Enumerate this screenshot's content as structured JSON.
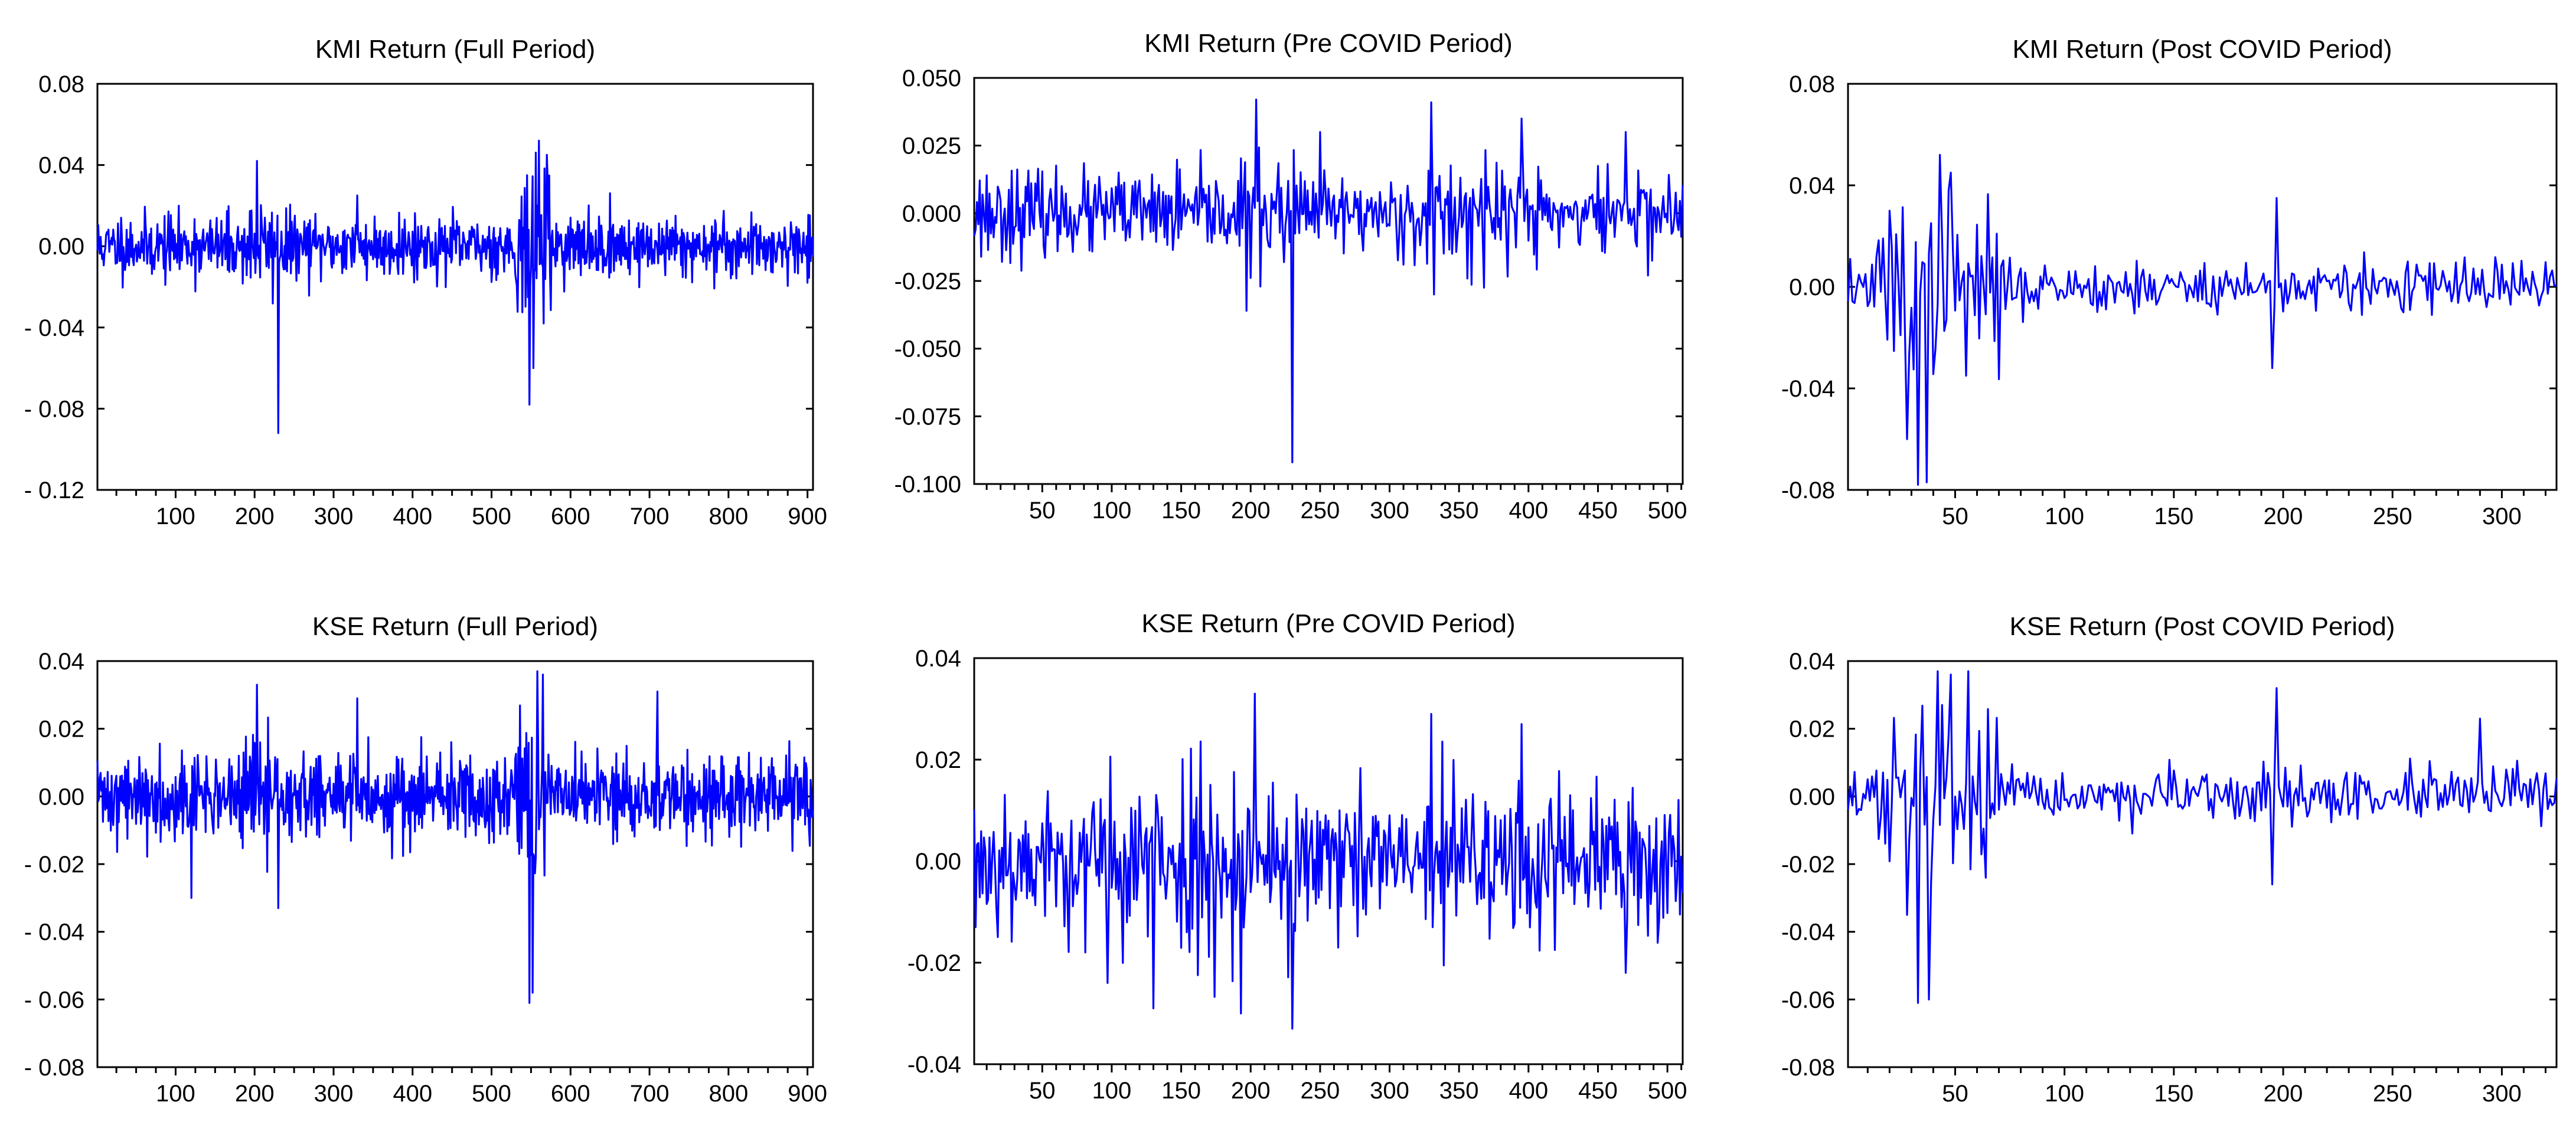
{
  "colors": {
    "series": "#0000ff",
    "axis": "#000000",
    "background": "#ffffff"
  },
  "chart_data": [
    {
      "type": "line",
      "title": "KMI Return (Full Period)",
      "xlabel": "",
      "ylabel": "",
      "xlim": [
        1,
        907
      ],
      "ylim": [
        -0.12,
        0.08
      ],
      "yticks": [
        0.08,
        0.04,
        0.0,
        -0.04,
        -0.08,
        -0.12
      ],
      "ytick_labels": [
        "0.08",
        "0.04",
        "0.00",
        "- 0.04",
        "- 0.08",
        "- 0.12"
      ],
      "xticks": [
        100,
        200,
        300,
        400,
        500,
        600,
        700,
        800,
        900
      ],
      "xtick_labels": [
        "100",
        "200",
        "300",
        "400",
        "500",
        "600",
        "700",
        "800",
        "900"
      ],
      "minor_x_step": 25,
      "grid": false,
      "series": [
        {
          "noise": 0.009,
          "seed": 11,
          "keypoints": [
            [
              230,
              -0.092
            ],
            [
              548,
              -0.078
            ],
            [
              560,
              0.052
            ],
            [
              553,
              -0.06
            ],
            [
              203,
              0.042
            ],
            [
              545,
              0.035
            ],
            [
              570,
              0.045
            ],
            [
              330,
              0.025
            ]
          ],
          "volatile": [
            [
              530,
              575,
              2.2
            ],
            [
              190,
              240,
              1.4
            ]
          ]
        }
      ]
    },
    {
      "type": "line",
      "title": "KMI Return (Pre COVID Period)",
      "xlabel": "",
      "ylabel": "",
      "xlim": [
        1,
        511
      ],
      "ylim": [
        -0.1,
        0.05
      ],
      "yticks": [
        0.05,
        0.025,
        0.0,
        -0.025,
        -0.05,
        -0.075,
        -0.1
      ],
      "ytick_labels": [
        "0.050",
        "0.025",
        "0.000",
        "-0.025",
        "-0.050",
        "-0.075",
        "-0.100"
      ],
      "xticks": [
        50,
        100,
        150,
        200,
        250,
        300,
        350,
        400,
        450,
        500
      ],
      "xtick_labels": [
        "50",
        "100",
        "150",
        "200",
        "250",
        "300",
        "350",
        "400",
        "450",
        "500"
      ],
      "minor_x_step": 10,
      "grid": false,
      "series": [
        {
          "noise": 0.009,
          "seed": 23,
          "keypoints": [
            [
              230,
              -0.092
            ],
            [
              204,
              0.042
            ],
            [
              330,
              0.041
            ],
            [
              395,
              0.035
            ],
            [
              197,
              -0.036
            ],
            [
              332,
              -0.03
            ],
            [
              470,
              0.03
            ],
            [
              250,
              0.03
            ]
          ],
          "volatile": [
            [
              190,
              240,
              1.3
            ],
            [
              320,
              420,
              1.3
            ]
          ]
        }
      ]
    },
    {
      "type": "line",
      "title": "KMI Return (Post COVID Period)",
      "xlabel": "",
      "ylabel": "",
      "xlim": [
        1,
        325
      ],
      "ylim": [
        -0.08,
        0.08
      ],
      "yticks": [
        0.08,
        0.04,
        0.0,
        -0.04,
        -0.08
      ],
      "ytick_labels": [
        "0.08",
        "0.04",
        "0.00",
        "-0.04",
        "-0.08"
      ],
      "xticks": [
        50,
        100,
        150,
        200,
        250,
        300
      ],
      "xtick_labels": [
        "50",
        "100",
        "150",
        "200",
        "250",
        "300"
      ],
      "minor_x_step": 10,
      "grid": false,
      "series": [
        {
          "noise": 0.006,
          "seed": 37,
          "keypoints": [
            [
              33,
              -0.078
            ],
            [
              37,
              -0.077
            ],
            [
              43,
              0.052
            ],
            [
              48,
              0.045
            ],
            [
              28,
              -0.06
            ],
            [
              55,
              -0.035
            ],
            [
              197,
              0.035
            ],
            [
              195,
              -0.032
            ],
            [
              20,
              0.03
            ]
          ],
          "volatile": [
            [
              15,
              70,
              3.2
            ]
          ]
        }
      ]
    },
    {
      "type": "line",
      "title": "KSE Return (Full Period)",
      "xlabel": "",
      "ylabel": "",
      "xlim": [
        1,
        907
      ],
      "ylim": [
        -0.08,
        0.04
      ],
      "yticks": [
        0.04,
        0.02,
        0.0,
        -0.02,
        -0.04,
        -0.06,
        -0.08
      ],
      "ytick_labels": [
        "0.04",
        "0.02",
        "0.00",
        "- 0.02",
        "- 0.04",
        "- 0.06",
        "- 0.08"
      ],
      "xticks": [
        100,
        200,
        300,
        400,
        500,
        600,
        700,
        800,
        900
      ],
      "xtick_labels": [
        "100",
        "200",
        "300",
        "400",
        "500",
        "600",
        "700",
        "800",
        "900"
      ],
      "minor_x_step": 25,
      "grid": false,
      "series": [
        {
          "noise": 0.0075,
          "seed": 41,
          "keypoints": [
            [
              548,
              -0.061
            ],
            [
              552,
              -0.058
            ],
            [
              558,
              0.037
            ],
            [
              565,
              0.036
            ],
            [
              203,
              0.033
            ],
            [
              230,
              -0.033
            ],
            [
              710,
              0.031
            ],
            [
              330,
              0.029
            ],
            [
              120,
              -0.03
            ]
          ],
          "volatile": [
            [
              530,
              575,
              2.4
            ],
            [
              190,
              240,
              1.3
            ]
          ]
        }
      ]
    },
    {
      "type": "line",
      "title": "KSE Return (Pre COVID Period)",
      "xlabel": "",
      "ylabel": "",
      "xlim": [
        1,
        511
      ],
      "ylim": [
        -0.04,
        0.04
      ],
      "yticks": [
        0.04,
        0.02,
        0.0,
        -0.02,
        -0.04
      ],
      "ytick_labels": [
        "0.04",
        "0.02",
        "0.00",
        "-0.02",
        "-0.04"
      ],
      "xticks": [
        50,
        100,
        150,
        200,
        250,
        300,
        350,
        400,
        450,
        500
      ],
      "xtick_labels": [
        "50",
        "100",
        "150",
        "200",
        "250",
        "300",
        "350",
        "400",
        "450",
        "500"
      ],
      "minor_x_step": 10,
      "grid": false,
      "series": [
        {
          "noise": 0.0085,
          "seed": 53,
          "keypoints": [
            [
              203,
              0.033
            ],
            [
              230,
              -0.033
            ],
            [
              330,
              0.029
            ],
            [
              193,
              -0.03
            ],
            [
              395,
              0.027
            ],
            [
              130,
              -0.029
            ],
            [
              97,
              -0.024
            ],
            [
              470,
              -0.022
            ]
          ],
          "volatile": [
            [
              90,
              240,
              1.3
            ],
            [
              320,
              420,
              1.2
            ]
          ]
        }
      ]
    },
    {
      "type": "line",
      "title": "KSE Return (Post COVID Period)",
      "xlabel": "",
      "ylabel": "",
      "xlim": [
        1,
        325
      ],
      "ylim": [
        -0.08,
        0.04
      ],
      "yticks": [
        0.04,
        0.02,
        0.0,
        -0.02,
        -0.04,
        -0.06,
        -0.08
      ],
      "ytick_labels": [
        "0.04",
        "0.02",
        "0.00",
        "-0.02",
        "-0.04",
        "-0.06",
        "-0.08"
      ],
      "xticks": [
        50,
        100,
        150,
        200,
        250,
        300
      ],
      "xtick_labels": [
        "50",
        "100",
        "150",
        "200",
        "250",
        "300"
      ],
      "minor_x_step": 10,
      "grid": false,
      "series": [
        {
          "noise": 0.0045,
          "seed": 67,
          "keypoints": [
            [
              33,
              -0.061
            ],
            [
              38,
              -0.06
            ],
            [
              42,
              0.037
            ],
            [
              48,
              0.036
            ],
            [
              56,
              0.037
            ],
            [
              28,
              -0.035
            ],
            [
              197,
              0.032
            ],
            [
              195,
              -0.026
            ],
            [
              290,
              0.023
            ]
          ],
          "volatile": [
            [
              15,
              70,
              3.4
            ]
          ]
        }
      ]
    }
  ]
}
